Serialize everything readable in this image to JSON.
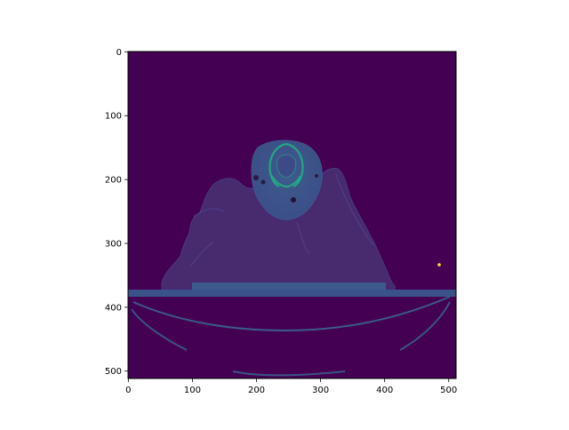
{
  "figure": {
    "background": "#ffffff",
    "colormap": "viridis",
    "image_description_colors": {
      "background_dark": "#440154",
      "tissue": "#3d4b8a",
      "bone": "#22a884",
      "bright_spot": "#fde725"
    },
    "x_axis": {
      "ticks": [
        {
          "label": "0",
          "value": 0
        },
        {
          "label": "100",
          "value": 100
        },
        {
          "label": "200",
          "value": 200
        },
        {
          "label": "300",
          "value": 300
        },
        {
          "label": "400",
          "value": 400
        },
        {
          "label": "500",
          "value": 500
        }
      ],
      "range": [
        0,
        511
      ]
    },
    "y_axis": {
      "ticks": [
        {
          "label": "0",
          "value": 0
        },
        {
          "label": "100",
          "value": 100
        },
        {
          "label": "200",
          "value": 200
        },
        {
          "label": "300",
          "value": 300
        },
        {
          "label": "400",
          "value": 400
        },
        {
          "label": "500",
          "value": 500
        }
      ],
      "range": [
        0,
        511
      ],
      "inverted": true
    }
  }
}
